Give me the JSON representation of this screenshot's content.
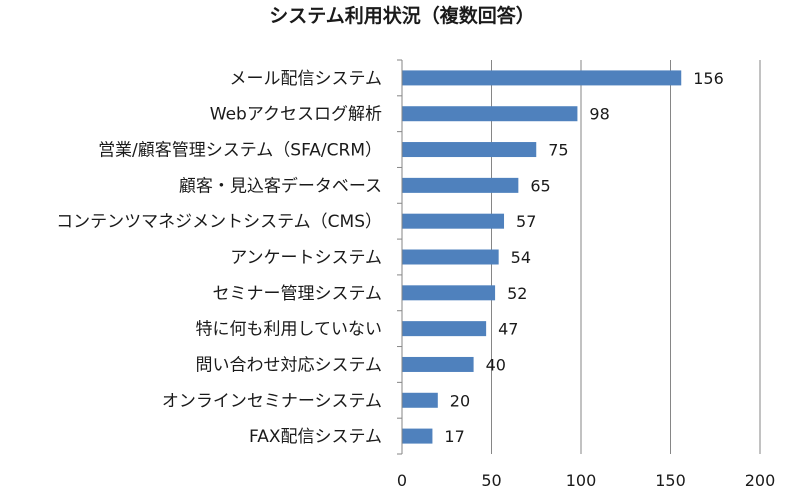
{
  "chart_data": {
    "type": "bar",
    "orientation": "horizontal",
    "title": "システム利用状況（複数回答）",
    "categories": [
      "メール配信システム",
      "Webアクセスログ解析",
      "営業/顧客管理システム（SFA/CRM）",
      "顧客・見込客データベース",
      "コンテンツマネジメントシステム（CMS）",
      "アンケートシステム",
      "セミナー管理システム",
      "特に何も利用していない",
      "問い合わせ対応システム",
      "オンラインセミナーシステム",
      "FAX配信システム"
    ],
    "values": [
      156,
      98,
      75,
      65,
      57,
      54,
      52,
      47,
      40,
      20,
      17
    ],
    "xlim": [
      0,
      200
    ],
    "xticks": [
      0,
      50,
      100,
      150,
      200
    ],
    "xtick_labels": [
      "0",
      "50",
      "100",
      "150",
      "200"
    ],
    "grid": "vertical",
    "legend": "none",
    "bar_color": "#4f81bd"
  }
}
